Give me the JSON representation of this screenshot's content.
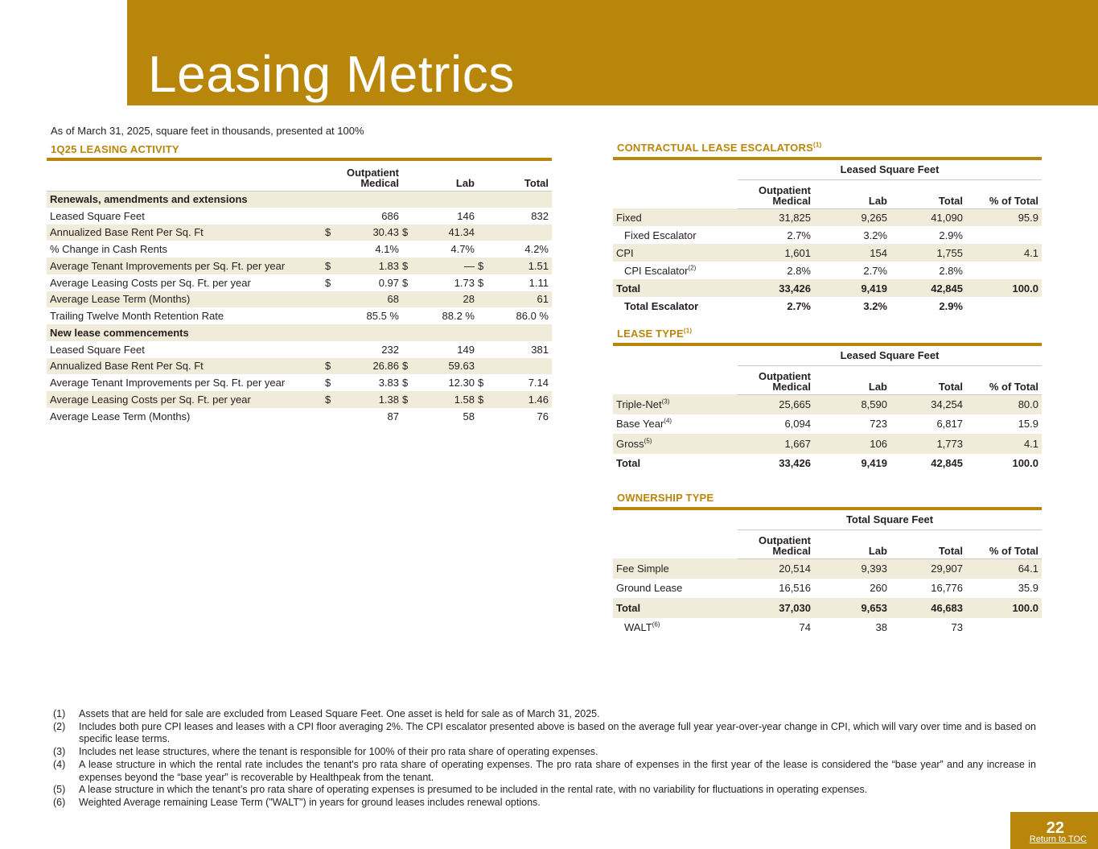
{
  "header": {
    "title": "Leasing Metrics"
  },
  "subtitle": "As of March 31, 2025, square feet in thousands, presented at 100%",
  "activity": {
    "title": "1Q25 LEASING ACTIVITY",
    "headers": {
      "c1a": "Outpatient",
      "c1b": "Medical",
      "c2": "Lab",
      "c3": "Total"
    },
    "rows": [
      {
        "label": "Renewals, amendments and extensions",
        "kind": "section",
        "shade": true
      },
      {
        "label": "Leased Square Feet",
        "d1": "",
        "v1": "686",
        "d2": "",
        "v2": "146",
        "d3": "",
        "v3": "832",
        "shade": false
      },
      {
        "label": "Annualized Base Rent Per Sq. Ft",
        "d1": "$",
        "v1": "30.43",
        "d2": "$",
        "v2": "41.34",
        "d3": "",
        "v3": "",
        "shade": true
      },
      {
        "label": "% Change in Cash Rents",
        "d1": "",
        "v1": "4.1%",
        "d2": "",
        "v2": "4.7%",
        "d3": "",
        "v3": "4.2%",
        "shade": false
      },
      {
        "label": "Average Tenant Improvements per Sq. Ft. per year",
        "d1": "$",
        "v1": "1.83",
        "d2": "$",
        "v2": "—",
        "d3": "$",
        "v3": "1.51",
        "shade": true
      },
      {
        "label": "Average Leasing Costs per Sq. Ft. per year",
        "d1": "$",
        "v1": "0.97",
        "d2": "$",
        "v2": "1.73",
        "d3": "$",
        "v3": "1.11",
        "shade": false
      },
      {
        "label": "Average Lease Term (Months)",
        "d1": "",
        "v1": "68",
        "d2": "",
        "v2": "28",
        "d3": "",
        "v3": "61",
        "shade": true
      },
      {
        "label": "Trailing Twelve Month Retention Rate",
        "d1": "",
        "v1": "85.5 %",
        "d2": "",
        "v2": "88.2 %",
        "d3": "",
        "v3": "86.0 %",
        "shade": false
      },
      {
        "label": "New lease commencements",
        "kind": "section",
        "shade": true
      },
      {
        "label": "Leased Square Feet",
        "d1": "",
        "v1": "232",
        "d2": "",
        "v2": "149",
        "d3": "",
        "v3": "381",
        "shade": false
      },
      {
        "label": "Annualized Base Rent Per Sq. Ft",
        "d1": "$",
        "v1": "26.86",
        "d2": "$",
        "v2": "59.63",
        "d3": "",
        "v3": "",
        "shade": true
      },
      {
        "label": "Average Tenant Improvements per Sq. Ft. per year",
        "d1": "$",
        "v1": "3.83",
        "d2": "$",
        "v2": "12.30",
        "d3": "$",
        "v3": "7.14",
        "shade": false
      },
      {
        "label": "Average Leasing Costs per Sq. Ft. per year",
        "d1": "$",
        "v1": "1.38",
        "d2": "$",
        "v2": "1.58",
        "d3": "$",
        "v3": "1.46",
        "shade": true
      },
      {
        "label": "Average Lease Term (Months)",
        "d1": "",
        "v1": "87",
        "d2": "",
        "v2": "58",
        "d3": "",
        "v3": "76",
        "shade": false
      }
    ]
  },
  "escalators": {
    "title": "CONTRACTUAL LEASE ESCALATORS",
    "title_sup": "(1)",
    "group": "Leased Square Feet",
    "headers": {
      "c1a": "Outpatient",
      "c1b": "Medical",
      "c2": "Lab",
      "c3": "Total",
      "c4": "% of Total"
    },
    "rows": [
      {
        "label": "Fixed",
        "sup": "",
        "v1": "31,825",
        "v2": "9,265",
        "v3": "41,090",
        "v4": "95.9",
        "shade": true,
        "bold": false,
        "indent": false
      },
      {
        "label": "Fixed Escalator",
        "sup": "",
        "v1": "2.7%",
        "v2": "3.2%",
        "v3": "2.9%",
        "v4": "",
        "shade": false,
        "bold": false,
        "indent": true
      },
      {
        "label": "CPI",
        "sup": "",
        "v1": "1,601",
        "v2": "154",
        "v3": "1,755",
        "v4": "4.1",
        "shade": true,
        "bold": false,
        "indent": false
      },
      {
        "label": "CPI Escalator",
        "sup": "(2)",
        "v1": "2.8%",
        "v2": "2.7%",
        "v3": "2.8%",
        "v4": "",
        "shade": false,
        "bold": false,
        "indent": true
      },
      {
        "label": "Total",
        "sup": "",
        "v1": "33,426",
        "v2": "9,419",
        "v3": "42,845",
        "v4": "100.0",
        "shade": true,
        "bold": true,
        "indent": false
      },
      {
        "label": "Total Escalator",
        "sup": "",
        "v1": "2.7%",
        "v2": "3.2%",
        "v3": "2.9%",
        "v4": "",
        "shade": false,
        "bold": true,
        "indent": true
      }
    ]
  },
  "lease_type": {
    "title": "LEASE TYPE",
    "title_sup": "(1)",
    "group": "Leased Square Feet",
    "headers": {
      "c1a": "Outpatient",
      "c1b": "Medical",
      "c2": "Lab",
      "c3": "Total",
      "c4": "% of Total"
    },
    "rows": [
      {
        "label": "Triple-Net",
        "sup": "(3)",
        "v1": "25,665",
        "v2": "8,590",
        "v3": "34,254",
        "v4": "80.0",
        "shade": true,
        "bold": false,
        "indent": false
      },
      {
        "label": "Base Year",
        "sup": "(4)",
        "v1": "6,094",
        "v2": "723",
        "v3": "6,817",
        "v4": "15.9",
        "shade": false,
        "bold": false,
        "indent": false
      },
      {
        "label": "Gross",
        "sup": "(5)",
        "v1": "1,667",
        "v2": "106",
        "v3": "1,773",
        "v4": "4.1",
        "shade": true,
        "bold": false,
        "indent": false
      },
      {
        "label": "Total",
        "sup": "",
        "v1": "33,426",
        "v2": "9,419",
        "v3": "42,845",
        "v4": "100.0",
        "shade": false,
        "bold": true,
        "indent": false
      }
    ]
  },
  "ownership": {
    "title": "OWNERSHIP TYPE",
    "title_sup": "",
    "group": "Total Square Feet",
    "headers": {
      "c1a": "Outpatient",
      "c1b": "Medical",
      "c2": "Lab",
      "c3": "Total",
      "c4": "% of Total"
    },
    "rows": [
      {
        "label": "Fee Simple",
        "sup": "",
        "v1": "20,514",
        "v2": "9,393",
        "v3": "29,907",
        "v4": "64.1",
        "shade": true,
        "bold": false,
        "indent": false
      },
      {
        "label": "Ground Lease",
        "sup": "",
        "v1": "16,516",
        "v2": "260",
        "v3": "16,776",
        "v4": "35.9",
        "shade": false,
        "bold": false,
        "indent": false
      },
      {
        "label": "Total",
        "sup": "",
        "v1": "37,030",
        "v2": "9,653",
        "v3": "46,683",
        "v4": "100.0",
        "shade": true,
        "bold": true,
        "indent": false
      },
      {
        "label": "WALT",
        "sup": "(6)",
        "v1": "74",
        "v2": "38",
        "v3": "73",
        "v4": "",
        "shade": false,
        "bold": false,
        "indent": true
      }
    ]
  },
  "footnotes": [
    {
      "n": "(1)",
      "text": "Assets that are held for sale are excluded from Leased Square Feet. One asset is held for sale as of March 31, 2025."
    },
    {
      "n": "(2)",
      "text": "Includes both pure CPI leases and leases with a CPI floor averaging 2%. The CPI escalator presented above is based on the average full year year-over-year change in CPI, which will vary over time and is based on specific lease terms."
    },
    {
      "n": "(3)",
      "text": "Includes net lease structures, where the tenant is responsible for 100% of their pro rata share of operating expenses."
    },
    {
      "n": "(4)",
      "text": "A lease structure in which the rental rate includes the tenant's pro rata share of operating expenses. The pro rata share of expenses in the first year of the lease is considered the “base year” and any increase in expenses beyond the “base year” is recoverable by Healthpeak from the tenant."
    },
    {
      "n": "(5)",
      "text": "A lease structure in which the tenant’s pro rata share of operating expenses is presumed to be included in the rental rate, with no variability for fluctuations in operating expenses."
    },
    {
      "n": "(6)",
      "text": "Weighted Average remaining Lease Term (\"WALT\") in years for ground leases includes renewal options."
    }
  ],
  "page": {
    "number": "22",
    "toc_label": "Return to TOC"
  }
}
